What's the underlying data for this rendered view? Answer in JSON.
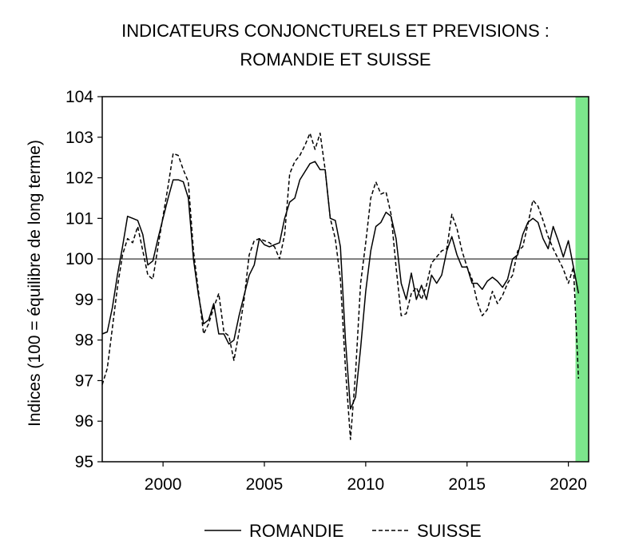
{
  "chart_data": {
    "type": "line",
    "title": "INDICATEURS CONJONCTURELS ET PREVISIONS :",
    "subtitle": "ROMANDIE ET SUISSE",
    "xlabel": "",
    "ylabel": "Indices (100 = équilibre de long terme)",
    "xlim": [
      1997.0,
      2021.0
    ],
    "ylim": [
      95,
      104
    ],
    "yticks": [
      95,
      96,
      97,
      98,
      99,
      100,
      101,
      102,
      103,
      104
    ],
    "xticks": [
      2000,
      2005,
      2010,
      2015,
      2020
    ],
    "xtick_labels": [
      "2000",
      "2005",
      "2010",
      "2015",
      "2020"
    ],
    "reference_line": 100,
    "forecast_band": {
      "from": 2020.35,
      "to": 2021.0,
      "color": "#7ce68c"
    },
    "legend_position": "bottom",
    "series": [
      {
        "name": "ROMANDIE",
        "style": "solid",
        "color": "#000000",
        "x": [
          1997.0,
          1997.25,
          1997.5,
          1997.75,
          1998.0,
          1998.25,
          1998.5,
          1998.75,
          1999.0,
          1999.25,
          1999.5,
          1999.75,
          2000.0,
          2000.25,
          2000.5,
          2000.75,
          2001.0,
          2001.25,
          2001.5,
          2001.75,
          2002.0,
          2002.25,
          2002.5,
          2002.75,
          2003.0,
          2003.25,
          2003.5,
          2003.75,
          2004.0,
          2004.25,
          2004.5,
          2004.75,
          2005.0,
          2005.25,
          2005.5,
          2005.75,
          2006.0,
          2006.25,
          2006.5,
          2006.75,
          2007.0,
          2007.25,
          2007.5,
          2007.75,
          2008.0,
          2008.25,
          2008.5,
          2008.75,
          2009.0,
          2009.25,
          2009.5,
          2009.75,
          2010.0,
          2010.25,
          2010.5,
          2010.75,
          2011.0,
          2011.25,
          2011.5,
          2011.75,
          2012.0,
          2012.25,
          2012.5,
          2012.75,
          2013.0,
          2013.25,
          2013.5,
          2013.75,
          2014.0,
          2014.25,
          2014.5,
          2014.75,
          2015.0,
          2015.25,
          2015.5,
          2015.75,
          2016.0,
          2016.25,
          2016.5,
          2016.75,
          2017.0,
          2017.25,
          2017.5,
          2017.75,
          2018.0,
          2018.25,
          2018.5,
          2018.75,
          2019.0,
          2019.25,
          2019.5,
          2019.75,
          2020.0,
          2020.25,
          2020.5
        ],
        "values": [
          98.15,
          98.2,
          98.8,
          99.6,
          100.3,
          101.05,
          101.0,
          100.95,
          100.6,
          99.85,
          99.95,
          100.5,
          101.0,
          101.5,
          101.95,
          101.95,
          101.9,
          101.5,
          100.0,
          99.1,
          98.4,
          98.5,
          98.9,
          98.15,
          98.15,
          97.9,
          98.0,
          98.6,
          99.1,
          99.6,
          99.85,
          100.5,
          100.35,
          100.3,
          100.35,
          100.4,
          101.0,
          101.4,
          101.5,
          101.95,
          102.15,
          102.35,
          102.4,
          102.2,
          102.2,
          101.0,
          100.95,
          100.3,
          98.0,
          96.3,
          96.6,
          97.8,
          99.2,
          100.2,
          100.8,
          100.9,
          101.15,
          101.05,
          100.5,
          99.4,
          99.0,
          99.65,
          99.0,
          99.35,
          99.0,
          99.6,
          99.4,
          99.6,
          100.2,
          100.55,
          100.1,
          99.8,
          99.8,
          99.4,
          99.4,
          99.25,
          99.45,
          99.55,
          99.45,
          99.3,
          99.5,
          100.0,
          100.1,
          100.6,
          100.9,
          101.0,
          100.9,
          100.5,
          100.25,
          100.8,
          100.45,
          100.05,
          100.45,
          99.8,
          99.15
        ]
      },
      {
        "name": "SUISSE",
        "style": "dashed",
        "color": "#000000",
        "x": [
          1997.0,
          1997.25,
          1997.5,
          1997.75,
          1998.0,
          1998.25,
          1998.5,
          1998.75,
          1999.0,
          1999.25,
          1999.5,
          1999.75,
          2000.0,
          2000.25,
          2000.5,
          2000.75,
          2001.0,
          2001.25,
          2001.5,
          2001.75,
          2002.0,
          2002.25,
          2002.5,
          2002.75,
          2003.0,
          2003.25,
          2003.5,
          2003.75,
          2004.0,
          2004.25,
          2004.5,
          2004.75,
          2005.0,
          2005.25,
          2005.5,
          2005.75,
          2006.0,
          2006.25,
          2006.5,
          2006.75,
          2007.0,
          2007.25,
          2007.5,
          2007.75,
          2008.0,
          2008.25,
          2008.5,
          2008.75,
          2009.0,
          2009.25,
          2009.5,
          2009.75,
          2010.0,
          2010.25,
          2010.5,
          2010.75,
          2011.0,
          2011.25,
          2011.5,
          2011.75,
          2012.0,
          2012.25,
          2012.5,
          2012.75,
          2013.0,
          2013.25,
          2013.5,
          2013.75,
          2014.0,
          2014.25,
          2014.5,
          2014.75,
          2015.0,
          2015.25,
          2015.5,
          2015.75,
          2016.0,
          2016.25,
          2016.5,
          2016.75,
          2017.0,
          2017.25,
          2017.5,
          2017.75,
          2018.0,
          2018.25,
          2018.5,
          2018.75,
          2019.0,
          2019.25,
          2019.5,
          2019.75,
          2020.0,
          2020.25,
          2020.5
        ],
        "values": [
          96.9,
          97.3,
          98.3,
          99.3,
          100.1,
          100.5,
          100.4,
          100.8,
          100.2,
          99.6,
          99.5,
          100.3,
          101.05,
          101.8,
          102.6,
          102.55,
          102.2,
          101.9,
          100.2,
          99.2,
          98.15,
          98.4,
          98.8,
          99.15,
          98.2,
          98.1,
          97.5,
          98.2,
          99.0,
          100.1,
          100.45,
          100.5,
          100.45,
          100.4,
          100.3,
          100.0,
          100.6,
          102.1,
          102.4,
          102.55,
          102.8,
          103.1,
          102.7,
          103.1,
          102.2,
          101.0,
          100.5,
          99.5,
          97.3,
          95.55,
          97.2,
          99.4,
          100.4,
          101.5,
          101.9,
          101.6,
          101.65,
          101.1,
          99.8,
          98.6,
          98.65,
          99.15,
          99.3,
          99.0,
          99.35,
          99.9,
          100.05,
          100.2,
          100.25,
          101.1,
          100.75,
          100.2,
          99.8,
          99.5,
          98.95,
          98.6,
          98.75,
          99.2,
          98.9,
          99.1,
          99.4,
          99.6,
          100.2,
          100.3,
          100.85,
          101.45,
          101.3,
          100.95,
          100.55,
          100.25,
          100.0,
          99.75,
          99.4,
          99.8,
          97.05
        ]
      }
    ]
  }
}
